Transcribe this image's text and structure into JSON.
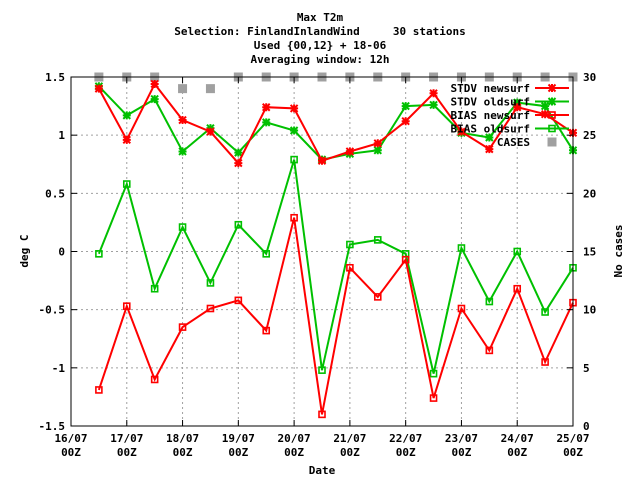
{
  "chart_data": {
    "type": "line",
    "title_lines": [
      "Max T2m",
      "Selection: FinlandInlandWind     30 stations",
      "Used {00,12} + 18-06",
      "Averaging window: 12h"
    ],
    "xlabel": "Date",
    "ylabel": "deg C",
    "y2label": "No cases",
    "ylim": [
      -1.5,
      1.5
    ],
    "y2lim": [
      0,
      30
    ],
    "yticks": [
      "1.5",
      "1",
      "0.5",
      "0",
      "-0.5",
      "-1",
      "-1.5"
    ],
    "y2ticks": [
      "30",
      "25",
      "20",
      "15",
      "10",
      "5",
      "0"
    ],
    "xticks": [
      {
        "d": "16/07",
        "t": "00Z"
      },
      {
        "d": "17/07",
        "t": "00Z"
      },
      {
        "d": "18/07",
        "t": "00Z"
      },
      {
        "d": "19/07",
        "t": "00Z"
      },
      {
        "d": "20/07",
        "t": "00Z"
      },
      {
        "d": "21/07",
        "t": "00Z"
      },
      {
        "d": "22/07",
        "t": "00Z"
      },
      {
        "d": "23/07",
        "t": "00Z"
      },
      {
        "d": "24/07",
        "t": "00Z"
      },
      {
        "d": "25/07",
        "t": "00Z"
      }
    ],
    "x": [
      16.5,
      17.0,
      17.5,
      18.0,
      18.5,
      19.0,
      19.5,
      20.0,
      20.5,
      21.0,
      21.5,
      22.0,
      22.5,
      23.0,
      23.5,
      24.0,
      24.5,
      25.0
    ],
    "x_units": "day of July (.0 = 00Z, .5 = 12Z)",
    "grid": true,
    "legend_position": "top-right",
    "series": [
      {
        "name": "STDV newsurf",
        "axis": "y",
        "color": "#ff0000",
        "marker": "x",
        "values": [
          1.4,
          0.96,
          1.44,
          1.13,
          1.03,
          0.76,
          1.24,
          1.23,
          0.78,
          0.86,
          0.93,
          1.12,
          1.36,
          1.03,
          0.88,
          1.24,
          1.18,
          1.02
        ]
      },
      {
        "name": "STDV oldsurf",
        "axis": "y",
        "color": "#00c000",
        "marker": "x",
        "values": [
          1.42,
          1.17,
          1.31,
          0.86,
          1.06,
          0.85,
          1.11,
          1.04,
          0.79,
          0.84,
          0.87,
          1.25,
          1.26,
          1.02,
          0.98,
          1.28,
          1.25,
          0.87
        ]
      },
      {
        "name": "BIAS newsurf",
        "axis": "y",
        "color": "#ff0000",
        "marker": "square",
        "values": [
          -1.19,
          -0.47,
          -1.1,
          -0.65,
          -0.49,
          -0.42,
          -0.68,
          0.29,
          -1.4,
          -0.14,
          -0.39,
          -0.07,
          -1.26,
          -0.49,
          -0.85,
          -0.32,
          -0.95,
          -0.44
        ]
      },
      {
        "name": "BIAS oldsurf",
        "axis": "y",
        "color": "#00c000",
        "marker": "square",
        "values": [
          -0.02,
          0.58,
          -0.32,
          0.21,
          -0.27,
          0.23,
          -0.02,
          0.79,
          -1.02,
          0.06,
          0.1,
          -0.02,
          -1.05,
          0.03,
          -0.43,
          0.0,
          -0.52,
          -0.14
        ]
      },
      {
        "name": "CASES",
        "axis": "y2",
        "color": "#a0a0a0",
        "marker": "filled-square",
        "values": [
          30,
          30,
          30,
          29,
          29,
          30,
          30,
          30,
          30,
          30,
          30,
          30,
          30,
          30,
          30,
          30,
          30,
          30
        ]
      }
    ]
  }
}
